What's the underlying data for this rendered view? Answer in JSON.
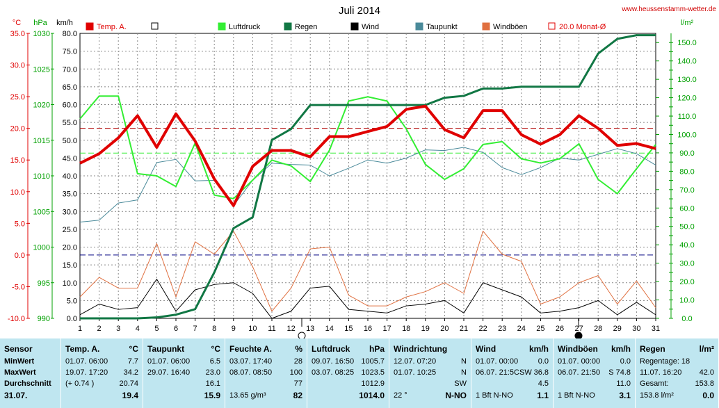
{
  "title": "Juli 2014",
  "site": "www.heussenstamm-wetter.de",
  "axis_units": {
    "temp": "°C",
    "pressure": "hPa",
    "wind": "km/h",
    "rain": "l/m²"
  },
  "legend": [
    {
      "label": "Temp. A.",
      "color": "#e00000",
      "style": "fill"
    },
    {
      "label": "",
      "color": "#ffffff",
      "style": "box"
    },
    {
      "label": "Luftdruck",
      "color": "#33ee33",
      "style": "fill"
    },
    {
      "label": "Regen",
      "color": "#117744",
      "style": "fill"
    },
    {
      "label": "Wind",
      "color": "#000000",
      "style": "fill"
    },
    {
      "label": "Taupunkt",
      "color": "#4a8a9a",
      "style": "fill"
    },
    {
      "label": "Windböen",
      "color": "#e07040",
      "style": "fill"
    },
    {
      "label": "20.0 Monat-Ø",
      "color": "#e00000",
      "style": "box"
    }
  ],
  "chart_data": {
    "type": "line",
    "x": [
      1,
      2,
      3,
      4,
      5,
      6,
      7,
      8,
      9,
      10,
      11,
      12,
      13,
      14,
      15,
      16,
      17,
      18,
      19,
      20,
      21,
      22,
      23,
      24,
      25,
      26,
      27,
      28,
      29,
      30,
      31
    ],
    "xlim": [
      1,
      31
    ],
    "axes": {
      "temp": {
        "label": "°C",
        "ticks": [
          "35.0",
          "30.0",
          "25.0",
          "20.0",
          "15.0",
          "10.0",
          "5.0",
          "0.0",
          "-5.0",
          "-10.0"
        ],
        "range": [
          -10,
          35
        ]
      },
      "pressure": {
        "label": "hPa",
        "ticks": [
          "1030",
          "1025",
          "1020",
          "1015",
          "1010",
          "1005",
          "1000",
          "995",
          "990"
        ],
        "range": [
          990,
          1030
        ]
      },
      "wind": {
        "label": "km/h",
        "ticks": [
          "80.0",
          "75.0",
          "70.0",
          "65.0",
          "60.0",
          "55.0",
          "50.0",
          "45.0",
          "40.0",
          "35.0",
          "30.0",
          "25.0",
          "20.0",
          "15.0",
          "10.0",
          "5.0",
          "0.0"
        ],
        "range": [
          0,
          80
        ]
      },
      "rain": {
        "label": "l/m²",
        "ticks": [
          "150.0",
          "140.0",
          "130.0",
          "120.0",
          "110.0",
          "100.0",
          "90.0",
          "80.0",
          "70.0",
          "60.0",
          "50.0",
          "40.0",
          "30.0",
          "20.0",
          "10.0",
          "0.0"
        ],
        "range": [
          0,
          155
        ]
      }
    },
    "series": [
      {
        "name": "Temp. A.",
        "axis": "temp",
        "color": "#e00000",
        "width": 4,
        "values": [
          14.5,
          16.0,
          18.5,
          22.0,
          17.0,
          22.3,
          18.0,
          12.0,
          7.8,
          14.0,
          16.5,
          16.5,
          15.5,
          18.7,
          18.7,
          19.5,
          20.3,
          23.0,
          23.5,
          19.8,
          18.5,
          22.8,
          22.8,
          19.0,
          17.5,
          19.0,
          22.0,
          20.0,
          17.3,
          17.6,
          16.8
        ]
      },
      {
        "name": "Taupunkt",
        "axis": "temp",
        "color": "#4a8a9a",
        "width": 1,
        "values": [
          5.2,
          5.5,
          8.2,
          8.7,
          14.6,
          15.1,
          11.7,
          11.8,
          7.8,
          11.8,
          14.5,
          14.3,
          14.2,
          12.5,
          13.7,
          15.0,
          14.5,
          15.3,
          16.6,
          16.5,
          17.0,
          16.2,
          13.8,
          12.7,
          13.8,
          15.3,
          15.0,
          15.9,
          16.8,
          16.0,
          14.2
        ]
      },
      {
        "name": "Luftdruck",
        "axis": "pressure",
        "color": "#33ee33",
        "width": 2,
        "values": [
          1018.0,
          1021.2,
          1021.2,
          1010.3,
          1010.0,
          1008.5,
          1014.6,
          1007.3,
          1006.8,
          1009.4,
          1012.2,
          1011.4,
          1009.2,
          1013.6,
          1020.5,
          1021.1,
          1020.5,
          1016.6,
          1011.6,
          1009.5,
          1011.0,
          1014.4,
          1014.8,
          1012.4,
          1011.8,
          1012.4,
          1014.5,
          1009.5,
          1007.5,
          1011.0,
          1014.4
        ]
      },
      {
        "name": "Regen",
        "axis": "rain",
        "color": "#117744",
        "width": 3,
        "values": [
          0,
          0,
          0,
          0,
          0.5,
          2,
          5,
          25,
          49,
          55,
          97,
          103,
          116,
          116,
          116,
          116,
          116,
          116,
          116,
          120,
          121,
          125,
          125,
          126,
          126,
          126,
          126,
          144,
          152,
          154,
          154
        ]
      },
      {
        "name": "Wind",
        "axis": "wind",
        "color": "#000000",
        "width": 1,
        "values": [
          1,
          4,
          2.5,
          3,
          11,
          2,
          8,
          9.5,
          10,
          7,
          0,
          2,
          8.5,
          9,
          2.5,
          2,
          1.5,
          3.5,
          4,
          5,
          1.5,
          10,
          8,
          6,
          1.5,
          2,
          3,
          5,
          1,
          4.5,
          1
        ]
      },
      {
        "name": "Windböen",
        "axis": "wind",
        "color": "#e07040",
        "width": 1,
        "values": [
          6,
          11.5,
          8.5,
          8.5,
          21,
          6,
          21.5,
          18,
          24.5,
          14.5,
          2,
          8.5,
          19.5,
          20,
          6.5,
          3.5,
          3.5,
          6,
          7.5,
          10,
          7,
          24.5,
          18,
          16,
          4,
          6,
          10,
          12,
          4,
          10.5,
          3
        ]
      }
    ],
    "reference_lines": [
      {
        "name": "20.0 Monat-Ø",
        "axis": "temp",
        "value": 20.0,
        "color": "#b00000"
      },
      {
        "axis": "pressure",
        "value": 1013.2,
        "color": "#33ee33"
      },
      {
        "axis": "temp",
        "value": 0.0,
        "color": "#000080"
      }
    ],
    "grid": true,
    "legend_position": "top"
  },
  "table": {
    "columns": [
      {
        "header": "Sensor",
        "unit": "",
        "rows": [
          [
            "MinWert",
            ""
          ],
          [
            "MaxWert",
            ""
          ],
          [
            "Durchschnitt",
            ""
          ]
        ],
        "footer": [
          "31.07.",
          ""
        ]
      },
      {
        "header": "Temp. A.",
        "unit": "°C",
        "rows": [
          [
            "01.07.   06:00",
            "7.7"
          ],
          [
            "19.07.   17:20",
            "34.2"
          ],
          [
            "(+ 0.74 )",
            "20.74"
          ]
        ],
        "footer": [
          "",
          "19.4"
        ]
      },
      {
        "header": "Taupunkt",
        "unit": "°C",
        "rows": [
          [
            "01.07.   06:00",
            "6.5"
          ],
          [
            "29.07.   16:40",
            "23.0"
          ],
          [
            "",
            "16.1"
          ]
        ],
        "footer": [
          "",
          "15.9"
        ]
      },
      {
        "header": "Feuchte A.",
        "unit": "%",
        "rows": [
          [
            "03.07.   17:40",
            "28"
          ],
          [
            "08.07.   08:50",
            "100"
          ],
          [
            "",
            "77"
          ]
        ],
        "footer": [
          "13.65 g/m³",
          "82"
        ]
      },
      {
        "header": "Luftdruck",
        "unit": "hPa",
        "rows": [
          [
            "09.07.   16:50",
            "1005.7"
          ],
          [
            "03.07.   08:25",
            "1023.5"
          ],
          [
            "",
            "1012.9"
          ]
        ],
        "footer": [
          "",
          "1014.0"
        ]
      },
      {
        "header": "Windrichtung",
        "unit": "",
        "rows": [
          [
            "12.07.   07:20",
            "N"
          ],
          [
            "01.07.   10:25",
            "N"
          ],
          [
            "",
            "SW"
          ]
        ],
        "footer": [
          "22 °",
          "N-NO"
        ]
      },
      {
        "header": "Wind",
        "unit": "km/h",
        "rows": [
          [
            "01.07.   00:00",
            "0.0"
          ],
          [
            "06.07.   21:5CSW",
            "36.8"
          ],
          [
            "",
            "4.5"
          ]
        ],
        "footer": [
          "1 Bft N-NO",
          "1.1"
        ]
      },
      {
        "header": "Windböen",
        "unit": "km/h",
        "rows": [
          [
            "01.07.   00:00",
            "0.0"
          ],
          [
            "06.07.   21:50",
            "S 74.8"
          ],
          [
            "",
            "11.0"
          ]
        ],
        "footer": [
          "1 Bft N-NO",
          "3.1"
        ]
      },
      {
        "header": "Regen",
        "unit": "l/m²",
        "rows": [
          [
            "Regentage: 18",
            ""
          ],
          [
            "11.07.   16:20",
            "42.0"
          ],
          [
            "Gesamt:",
            "153.8"
          ]
        ],
        "footer": [
          "153.8 l/m²",
          "0.0"
        ]
      }
    ]
  }
}
